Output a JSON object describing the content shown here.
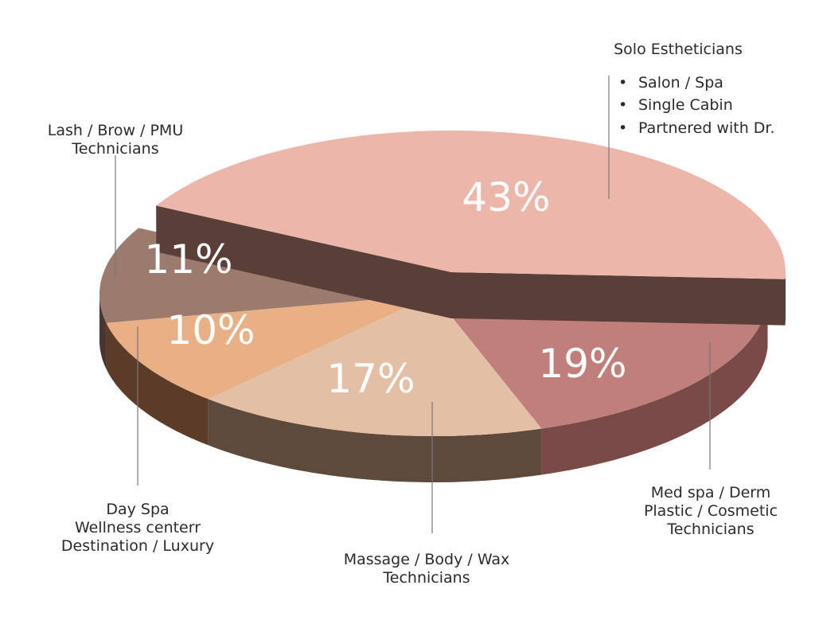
{
  "chart_data": {
    "type": "pie",
    "style": "3d-exploded",
    "slices": [
      {
        "label": "Solo Estheticians",
        "value": 43,
        "pct_label": "43%",
        "color": "#ecb6ab",
        "side_color": "#5a3f39",
        "exploded": true,
        "sub_items": [
          "Salon / Spa",
          "Single Cabin",
          "Partnered with Dr."
        ]
      },
      {
        "label": "Med spa / Derm Plastic / Cosmetic Technicians",
        "value": 19,
        "pct_label": "19%",
        "color": "#c17f7c",
        "side_color": "#7a4a48"
      },
      {
        "label": "Massage / Body / Wax Technicians",
        "value": 17,
        "pct_label": "17%",
        "color": "#e3c0a5",
        "side_color": "#5d4a3c"
      },
      {
        "label": "Day Spa Wellness centerr Destination / Luxury",
        "value": 10,
        "pct_label": "10%",
        "color": "#e9b086",
        "side_color": "#5a3c28"
      },
      {
        "label": "Lash / Brow / PMU Technicians",
        "value": 11,
        "pct_label": "11%",
        "color": "#9d7a6e",
        "side_color": "#4a3630"
      }
    ]
  },
  "labels": {
    "solo_title": "Solo Estheticians",
    "solo_items": [
      "Salon / Spa",
      "Single Cabin",
      "Partnered with Dr."
    ],
    "bullet": "•",
    "lash": [
      "Lash / Brow / PMU",
      "Technicians"
    ],
    "dayspa": [
      "Day Spa",
      "Wellness centerr",
      "Destination / Luxury"
    ],
    "massage": [
      "Massage / Body / Wax",
      "Technicians"
    ],
    "medspa": [
      "Med spa / Derm",
      "Plastic / Cosmetic",
      "Technicians"
    ]
  }
}
